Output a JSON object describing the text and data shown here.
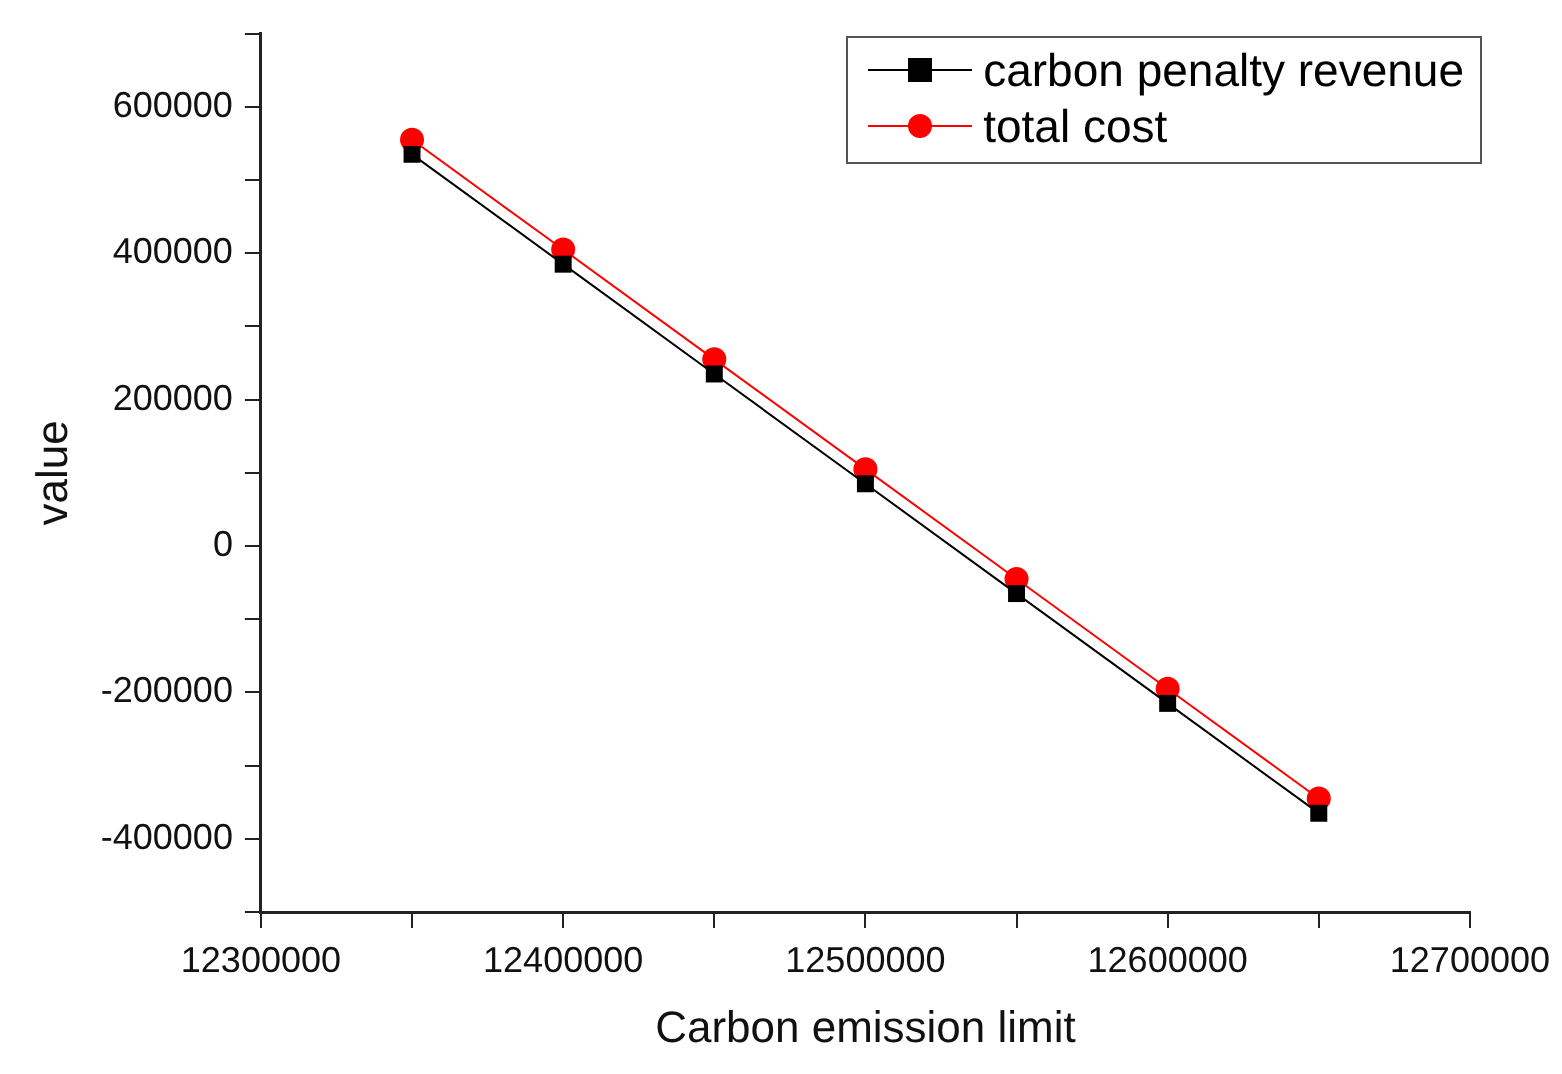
{
  "chart_data": {
    "type": "line",
    "xlabel": "Carbon emission limit",
    "ylabel": "value",
    "x": [
      12350000,
      12400000,
      12450000,
      12500000,
      12550000,
      12600000,
      12650000
    ],
    "series": [
      {
        "name": "carbon penalty revenue",
        "color": "#000000",
        "marker": "square",
        "values": [
          535000,
          385000,
          235000,
          85000,
          -65000,
          -215000,
          -365000
        ]
      },
      {
        "name": "total cost",
        "color": "#ff0000",
        "marker": "circle",
        "values": [
          555000,
          405000,
          255000,
          105000,
          -45000,
          -195000,
          -345000
        ]
      }
    ],
    "xlim": [
      12300000,
      12700000
    ],
    "xticks": [
      12300000,
      {
        "value": 12350000,
        "label": null
      },
      12400000,
      {
        "value": 12450000,
        "label": null
      },
      12500000,
      {
        "value": 12550000,
        "label": null
      },
      12600000,
      {
        "value": 12650000,
        "label": null
      },
      12700000
    ],
    "ylim": [
      -500000,
      700000
    ],
    "yticks": [
      {
        "value": -500000,
        "label": null
      },
      -400000,
      {
        "value": -300000,
        "label": null
      },
      -200000,
      {
        "value": -100000,
        "label": null
      },
      0,
      {
        "value": 100000,
        "label": null
      },
      200000,
      {
        "value": 300000,
        "label": null
      },
      400000,
      {
        "value": 500000,
        "label": null
      },
      600000,
      {
        "value": 700000,
        "label": null
      }
    ],
    "grid": false,
    "legend": "top right",
    "line_style": "solid"
  }
}
